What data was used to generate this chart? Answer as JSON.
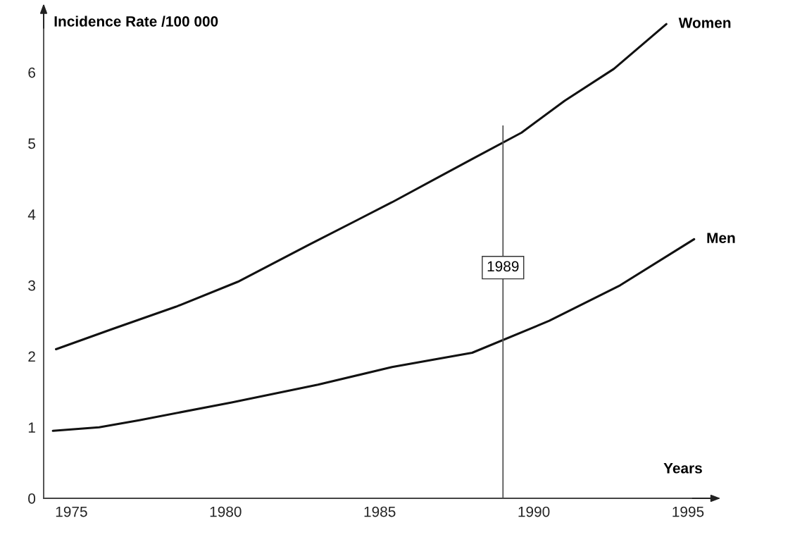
{
  "chart_data": {
    "type": "line",
    "ylabel": "Incidence Rate /100 000",
    "xlabel": "Years",
    "xlim": [
      1974.1,
      1995.8
    ],
    "xticks": [
      1975,
      1980,
      1985,
      1990,
      1995
    ],
    "ylim": [
      0,
      6.9
    ],
    "yticks": [
      0,
      1,
      2,
      3,
      4,
      5,
      6
    ],
    "grid": false,
    "legend": false,
    "marker": "none",
    "line_style": "solid",
    "series": [
      {
        "name": "Women",
        "color": "#111111",
        "x": [
          1974.5,
          1976.3,
          1978.4,
          1980.4,
          1982.7,
          1985.4,
          1988.0,
          1989.6,
          1991.0,
          1992.6,
          1994.3
        ],
        "values": [
          2.1,
          2.38,
          2.7,
          3.05,
          3.57,
          4.17,
          4.78,
          5.15,
          5.6,
          6.05,
          6.68
        ]
      },
      {
        "name": "Men",
        "color": "#111111",
        "x": [
          1974.4,
          1975.9,
          1977.2,
          1980.2,
          1983.0,
          1985.4,
          1988.0,
          1990.5,
          1992.8,
          1995.2
        ],
        "values": [
          0.95,
          1.0,
          1.1,
          1.35,
          1.6,
          1.85,
          2.05,
          2.5,
          3.0,
          3.65
        ]
      }
    ],
    "ref_lines": [
      {
        "axis": "x",
        "value": 1989,
        "label": "1989",
        "color": "#555555",
        "line_style": "solid"
      }
    ]
  }
}
